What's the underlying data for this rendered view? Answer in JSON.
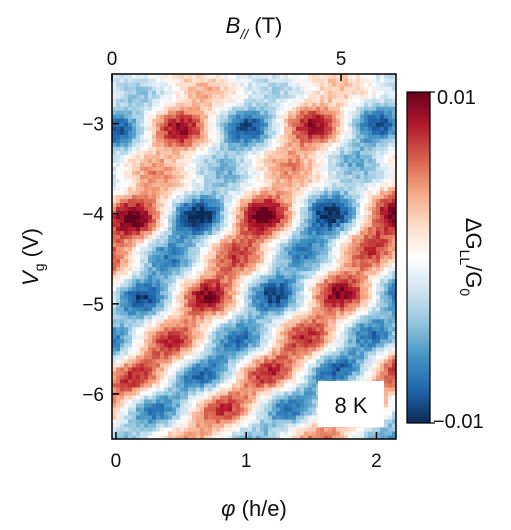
{
  "chart_data": {
    "type": "heatmap",
    "top_axis": {
      "label_main": "B",
      "label_sub": "//",
      "label_unit": " (T)",
      "ticks": [
        {
          "value": 0,
          "label": "0"
        },
        {
          "value": 5,
          "label": "5"
        }
      ],
      "range": [
        0,
        6.2
      ]
    },
    "x_axis": {
      "label_symbol": "φ",
      "label_unit": " (h/e)",
      "ticks": [
        {
          "value": 0,
          "label": "0"
        },
        {
          "value": 1,
          "label": "1"
        },
        {
          "value": 2,
          "label": "2"
        }
      ],
      "range": [
        -0.03,
        2.15
      ]
    },
    "y_axis": {
      "label_symbol": "V",
      "label_sub": "g",
      "label_unit": " (V)",
      "ticks": [
        {
          "value": -3,
          "label": "−3"
        },
        {
          "value": -4,
          "label": "−4"
        },
        {
          "value": -5,
          "label": "−5"
        },
        {
          "value": -6,
          "label": "−6"
        }
      ],
      "range": [
        -6.5,
        -2.45
      ]
    },
    "colorbar": {
      "label_main": "ΔG",
      "label_sub": "LL",
      "label_mid": "/G",
      "label_sub2": "0",
      "max_label": "0.01",
      "min_label": "−0.01",
      "range": [
        -0.01,
        0.01
      ],
      "colors": [
        "#0b2a55",
        "#2166ac",
        "#4393c3",
        "#92c5de",
        "#d1e5f0",
        "#ffffff",
        "#fddbc7",
        "#f4a582",
        "#d6604d",
        "#b2182b",
        "#67001f"
      ]
    },
    "annotation": "8 K",
    "colormap": "RdBu_r",
    "grid": false,
    "stripe_gate_centers": [
      -3.05,
      -4.05,
      -4.85,
      -5.55,
      -6.0,
      -6.35
    ],
    "stripe_amplitudes": [
      0.0075,
      0.009,
      0.0075,
      0.0065,
      0.006,
      0.005
    ]
  }
}
